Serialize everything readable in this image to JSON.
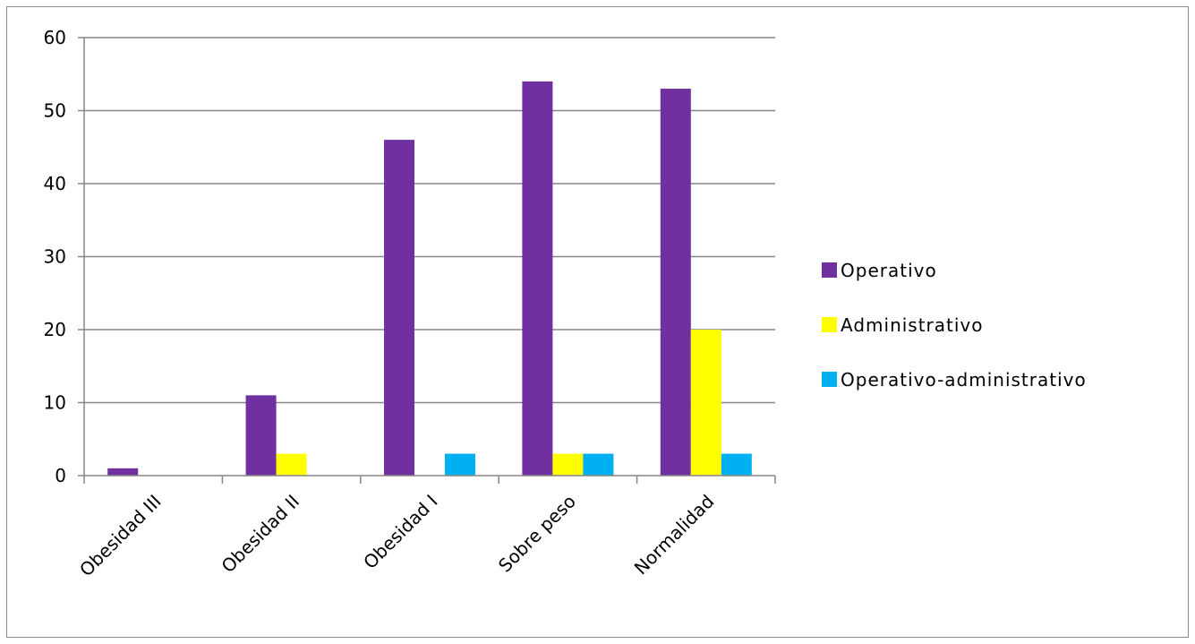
{
  "chart_data": {
    "type": "bar",
    "title": "",
    "xlabel": "",
    "ylabel": "",
    "categories": [
      "Obesidad III",
      "Obesidad II",
      "Obesidad I",
      "Sobre peso",
      "Normalidad"
    ],
    "series": [
      {
        "name": "Operativo",
        "color": "#7030a0",
        "values": [
          1,
          11,
          46,
          54,
          53
        ]
      },
      {
        "name": "Administrativo",
        "color": "#ffff00",
        "values": [
          0,
          3,
          0,
          3,
          20
        ]
      },
      {
        "name": "Operativo-administrativo",
        "color": "#00b0f0",
        "values": [
          0,
          0,
          3,
          3,
          3
        ]
      }
    ],
    "ylim": [
      0,
      60
    ],
    "yticks": [
      "0",
      "10",
      "20",
      "30",
      "40",
      "50",
      "60"
    ],
    "grid": true,
    "legend_position": "right"
  }
}
